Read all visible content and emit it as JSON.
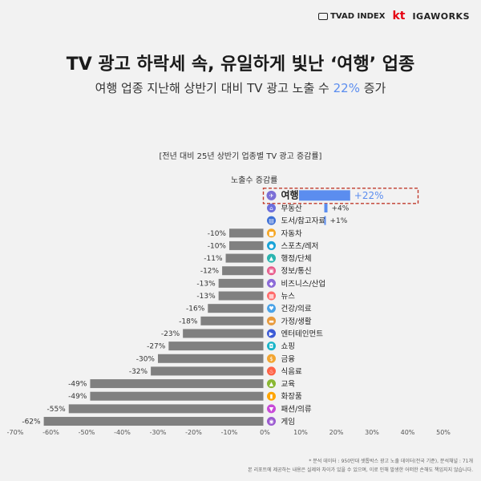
{
  "logos": {
    "tvad": "TVAD INDEX",
    "kt": "kt",
    "igaworks": "IGAWORKS"
  },
  "title": "TV 광고 하락세 속, 유일하게 빛난 ‘여행’ 업종",
  "subtitle_prefix": "여행 업종 지난해 상반기 대비 TV 광고 노출 수 ",
  "subtitle_pct": "22%",
  "subtitle_suffix": " 증가",
  "chart_data": {
    "type": "bar",
    "orientation": "horizontal",
    "title": "[전년 대비 25년 상반기 업종별 TV 광고 증감률]",
    "series_label": "노출수 증감률",
    "xlim": [
      -70,
      50
    ],
    "xticks": [
      -70,
      -60,
      -50,
      -40,
      -30,
      -20,
      -10,
      0,
      10,
      20,
      30,
      40,
      50
    ],
    "xtick_labels": [
      "-70%",
      "-60%",
      "-50%",
      "-40%",
      "-30%",
      "-20%",
      "-10%",
      "0%",
      "10%",
      "20%",
      "30%",
      "40%",
      "50%"
    ],
    "highlight": "여행",
    "highlight_color": "#5b8def",
    "positive_color": "#5b8def",
    "negative_color": "#808080",
    "categories": [
      "여행",
      "부동산",
      "도서/참고자료",
      "자동차",
      "스포츠/레저",
      "행정/단체",
      "정보/통신",
      "비즈니스/산업",
      "뉴스",
      "건강/의료",
      "가정/생활",
      "엔터테인먼트",
      "쇼핑",
      "금융",
      "식음료",
      "교육",
      "화장품",
      "패션/의류",
      "게임"
    ],
    "values": [
      22,
      4,
      1,
      -10,
      -10,
      -11,
      -12,
      -13,
      -13,
      -16,
      -18,
      -23,
      -27,
      -30,
      -32,
      -49,
      -49,
      -55,
      -62
    ],
    "value_labels": [
      "+22%",
      "+4%",
      "+1%",
      "-10%",
      "-10%",
      "-11%",
      "-12%",
      "-13%",
      "-13%",
      "-16%",
      "-18%",
      "-23%",
      "-27%",
      "-30%",
      "-32%",
      "-49%",
      "-49%",
      "-55%",
      "-62%"
    ],
    "icons": [
      "plane",
      "house",
      "book",
      "car",
      "ball",
      "building",
      "laptop",
      "briefcase",
      "news",
      "heart",
      "sofa",
      "film",
      "bag",
      "coin",
      "cup",
      "cap",
      "lipstick",
      "shirt",
      "gamepad"
    ],
    "icon_glyphs": [
      "✈",
      "⌂",
      "▤",
      "■",
      "●",
      "▲",
      "▣",
      "◆",
      "▦",
      "♥",
      "▬",
      "▶",
      "◘",
      "$",
      "♨",
      "▲",
      "▮",
      "▼",
      "◉"
    ],
    "icon_colors": [
      "#7b6fd6",
      "#6c6fdc",
      "#3d6fd6",
      "#f5a623",
      "#19a3d8",
      "#2bb5b0",
      "#e85a8a",
      "#8c6bd8",
      "#ff6b6b",
      "#4aa3e8",
      "#e89a3c",
      "#3d5bd6",
      "#19b4c8",
      "#f2a531",
      "#ff6347",
      "#8ab833",
      "#ffa500",
      "#c84ad8",
      "#9b59d0"
    ]
  },
  "footnote1": "* 분석 데이터 : 950만대 셋톱박스 광고 노출 데이터(전국 기준), 분석채널 : 71개",
  "footnote2": "본 리포트에 제공하는 내용은 실제와 차이가 있을 수 있으며, 이로 인해 발생한 어떠한 손해도 책임지지 않습니다."
}
